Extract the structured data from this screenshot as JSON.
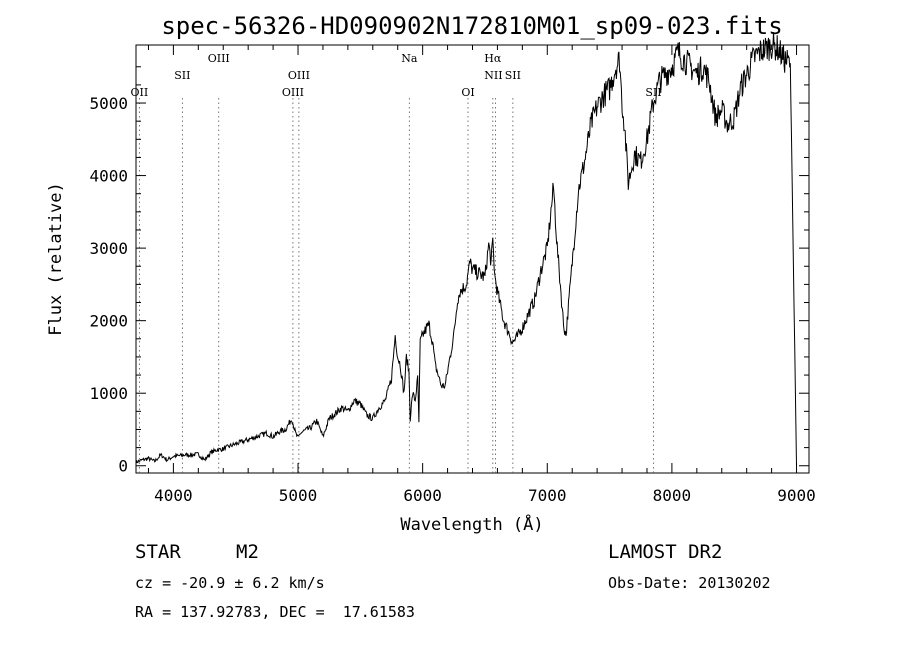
{
  "chart_data": {
    "type": "line",
    "title": "spec-56326-HD090902N172810M01_sp09-023.fits",
    "xlabel": "Wavelength (Å)",
    "ylabel": "Flux (relative)",
    "xlim": [
      3700,
      9100
    ],
    "ylim": [
      -100,
      5800
    ],
    "x_ticks": [
      4000,
      5000,
      6000,
      7000,
      8000,
      9000
    ],
    "y_ticks": [
      0,
      1000,
      2000,
      3000,
      4000,
      5000
    ],
    "grid": false,
    "series": [
      {
        "x": [
          3700,
          3750,
          3800,
          3850,
          3900,
          3950,
          4000,
          4050,
          4100,
          4150,
          4200,
          4250,
          4300,
          4350,
          4400,
          4450,
          4500,
          4550,
          4600,
          4650,
          4700,
          4750,
          4800,
          4850,
          4900,
          4950,
          4980,
          5000,
          5020,
          5050,
          5100,
          5150,
          5200,
          5250,
          5300,
          5350,
          5400,
          5450,
          5500,
          5550,
          5600,
          5650,
          5700,
          5750,
          5780,
          5800,
          5820,
          5850,
          5870,
          5890,
          5900,
          5920,
          5940,
          5960,
          5970,
          5980,
          6000,
          6050,
          6080,
          6100,
          6150,
          6180,
          6200,
          6250,
          6280,
          6300,
          6350,
          6380,
          6400,
          6450,
          6500,
          6530,
          6550,
          6563,
          6580,
          6600,
          6650,
          6700,
          6720,
          6750,
          6800,
          6850,
          6900,
          6950,
          7000,
          7050,
          7080,
          7100,
          7130,
          7150,
          7170,
          7200,
          7250,
          7300,
          7350,
          7400,
          7450,
          7500,
          7550,
          7580,
          7600,
          7620,
          7650,
          7700,
          7750,
          7800,
          7850,
          7900,
          7950,
          8000,
          8050,
          8100,
          8150,
          8200,
          8250,
          8300,
          8350,
          8400,
          8450,
          8500,
          8550,
          8600,
          8650,
          8700,
          8750,
          8800,
          8850,
          8900,
          8950,
          9000
        ],
        "y": [
          50,
          80,
          100,
          60,
          150,
          80,
          130,
          140,
          150,
          150,
          160,
          80,
          180,
          220,
          230,
          270,
          300,
          330,
          360,
          390,
          420,
          450,
          400,
          470,
          500,
          650,
          450,
          380,
          450,
          480,
          520,
          620,
          400,
          650,
          720,
          800,
          750,
          900,
          850,
          700,
          650,
          800,
          900,
          1200,
          1800,
          1500,
          1400,
          1000,
          1500,
          1300,
          650,
          1000,
          900,
          1200,
          600,
          1700,
          1800,
          1950,
          1700,
          1400,
          1100,
          1100,
          1300,
          1800,
          2300,
          2400,
          2500,
          2800,
          2700,
          2650,
          2600,
          3050,
          2800,
          3100,
          2600,
          2400,
          2000,
          1800,
          1700,
          1750,
          1900,
          2100,
          2300,
          2700,
          3000,
          3850,
          3000,
          2600,
          1950,
          1800,
          2200,
          2800,
          3800,
          4200,
          4700,
          4950,
          5100,
          5200,
          5500,
          5600,
          5000,
          4700,
          3900,
          4300,
          4200,
          4500,
          5000,
          5300,
          5400,
          5500,
          5700,
          5600,
          5500,
          5400,
          5500,
          5300,
          4800,
          4900,
          4700,
          4800,
          5200,
          5400,
          5600,
          5700,
          5750,
          5800,
          5750,
          5600,
          5550,
          0
        ]
      }
    ],
    "line_labels": [
      {
        "label": "OII",
        "x": 3727
      },
      {
        "label": "SII",
        "x": 4072
      },
      {
        "label": "OIII",
        "x": 4364
      },
      {
        "label": "OIII",
        "x": 4959
      },
      {
        "label": "OIII",
        "x": 5007
      },
      {
        "label": "Na",
        "x": 5893
      },
      {
        "label": "OI",
        "x": 6364
      },
      {
        "label": "Hα",
        "x": 6563
      },
      {
        "label": "NII",
        "x": 6584
      },
      {
        "label": "SII",
        "x": 6724
      },
      {
        "label": "SII",
        "x": 7852
      }
    ]
  },
  "info": {
    "object_type": "STAR",
    "subclass": "M2",
    "survey": "LAMOST DR2",
    "velocity": "cz = -20.9 ± 6.2 km/s",
    "obs_date": "Obs-Date: 20130202",
    "coords": "RA = 137.92783, DEC =  17.61583"
  }
}
